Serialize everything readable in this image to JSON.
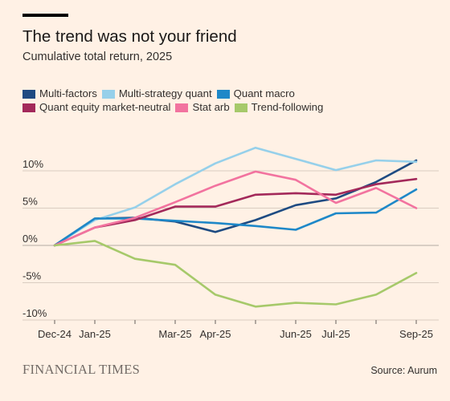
{
  "header": {
    "title": "The trend was not your friend",
    "subtitle": "Cumulative total return, 2025"
  },
  "footer": {
    "logo": "FINANCIAL TIMES",
    "source": "Source: Aurum"
  },
  "chart_data": {
    "type": "line",
    "title": "The trend was not your friend",
    "subtitle": "Cumulative total return, 2025",
    "xlabel": "",
    "ylabel": "",
    "x": [
      "Dec-24",
      "Jan-25",
      "Feb-25",
      "Mar-25",
      "Apr-25",
      "May-25",
      "Jun-25",
      "Jul-25",
      "Aug-25",
      "Sep-25"
    ],
    "x_tick_labels": [
      "Dec-24",
      "Jan-25",
      "",
      "Mar-25",
      "Apr-25",
      "",
      "Jun-25",
      "Jul-25",
      "",
      "Sep-25"
    ],
    "ylim": [
      -10,
      10
    ],
    "y_ticks": [
      10,
      5,
      0,
      -5,
      -10
    ],
    "y_tick_labels": [
      "10%",
      "5%",
      "0%",
      "-5%",
      "-10%"
    ],
    "grid": "horizontal",
    "legend_position": "top",
    "series": [
      {
        "name": "Multi-factors",
        "color": "#1e4b82",
        "values": [
          0,
          3.6,
          3.7,
          3.2,
          1.8,
          3.4,
          5.4,
          6.3,
          8.5,
          11.4
        ]
      },
      {
        "name": "Multi-strategy quant",
        "color": "#96d0ea",
        "values": [
          0,
          3.4,
          5.1,
          8.2,
          11.0,
          13.1,
          11.6,
          10.1,
          11.4,
          11.2
        ]
      },
      {
        "name": "Quant macro",
        "color": "#1e88c8",
        "values": [
          0,
          3.6,
          3.6,
          3.3,
          3.0,
          2.6,
          2.1,
          4.3,
          4.4,
          7.5
        ]
      },
      {
        "name": "Quant equity market-neutral",
        "color": "#a3295a",
        "values": [
          0,
          2.4,
          3.4,
          5.2,
          5.2,
          6.8,
          7.0,
          6.8,
          8.2,
          8.9
        ]
      },
      {
        "name": "Stat arb",
        "color": "#f2739f",
        "values": [
          0,
          2.4,
          3.7,
          5.8,
          8.0,
          9.9,
          8.8,
          5.7,
          7.7,
          5.0
        ]
      },
      {
        "name": "Trend-following",
        "color": "#a6c96a",
        "values": [
          0,
          0.6,
          -1.8,
          -2.6,
          -6.6,
          -8.2,
          -7.7,
          -7.9,
          -6.6,
          -3.7
        ]
      }
    ]
  }
}
